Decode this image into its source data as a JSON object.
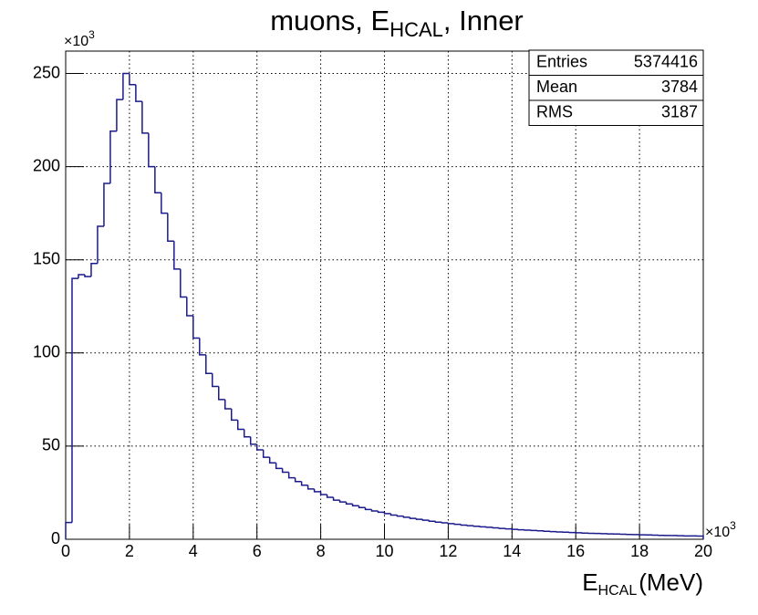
{
  "chart_data": {
    "type": "histogram",
    "title": {
      "text": "muons, E",
      "sub": "HCAL",
      "rest": ", Inner"
    },
    "x_label": {
      "text": "E",
      "sub": "HCAL",
      "rest": "(MeV)"
    },
    "x_multiplier": {
      "base": "×10",
      "exp": "3"
    },
    "y_multiplier": {
      "base": "×10",
      "exp": "3"
    },
    "color": "#1a1a8c",
    "grid": true,
    "xlim": [
      0,
      20
    ],
    "ylim": [
      0,
      262
    ],
    "xticks": [
      0,
      2,
      4,
      6,
      8,
      10,
      12,
      14,
      16,
      18,
      20
    ],
    "yticks": [
      0,
      50,
      100,
      150,
      200,
      250
    ],
    "stats": [
      {
        "label": "Entries",
        "value": 5374416
      },
      {
        "label": "Mean",
        "value": 3784
      },
      {
        "label": "RMS",
        "value": 3187
      }
    ],
    "bins": [
      0,
      0.2,
      0.4,
      0.6,
      0.8,
      1,
      1.2,
      1.4,
      1.6,
      1.8,
      2,
      2.2,
      2.4,
      2.6,
      2.8,
      3,
      3.2,
      3.4,
      3.6,
      3.8,
      4,
      4.2,
      4.4,
      4.6,
      4.8,
      5,
      5.2,
      5.4,
      5.6,
      5.8,
      6,
      6.2,
      6.4,
      6.6,
      6.8,
      7,
      7.2,
      7.4,
      7.6,
      7.8,
      8,
      8.2,
      8.4,
      8.6,
      8.8,
      9,
      9.2,
      9.4,
      9.6,
      9.8,
      10,
      10.2,
      10.4,
      10.6,
      10.8,
      11,
      11.2,
      11.4,
      11.6,
      11.8,
      12,
      12.2,
      12.4,
      12.6,
      12.8,
      13,
      13.2,
      13.4,
      13.6,
      13.8,
      14,
      14.2,
      14.4,
      14.6,
      14.8,
      15,
      15.2,
      15.4,
      15.6,
      15.8,
      16,
      16.2,
      16.4,
      16.6,
      16.8,
      17,
      17.2,
      17.4,
      17.6,
      17.8,
      18,
      18.2,
      18.4,
      18.6,
      18.8,
      19,
      19.2,
      19.4,
      19.6,
      19.8,
      20
    ],
    "values": [
      9,
      140,
      142,
      141,
      148,
      168,
      191,
      219,
      236,
      250,
      244,
      235,
      218,
      200,
      186,
      175,
      160,
      145,
      130,
      120,
      108,
      99,
      89,
      82,
      75,
      70,
      64,
      59,
      55,
      51,
      48,
      44,
      41,
      38,
      36,
      33,
      31,
      29,
      27,
      25.5,
      24,
      22.5,
      21,
      20,
      19,
      18,
      17,
      16,
      15.2,
      14.5,
      13.8,
      13,
      12.4,
      11.8,
      11.2,
      10.7,
      10.2,
      9.7,
      9.2,
      8.8,
      8.4,
      8,
      7.6,
      7.3,
      7,
      6.7,
      6.4,
      6.1,
      5.8,
      5.6,
      5.3,
      5.1,
      4.9,
      4.7,
      4.5,
      4.3,
      4.1,
      3.9,
      3.8,
      3.6,
      3.5,
      3.3,
      3.2,
      3.1,
      3,
      2.9,
      2.8,
      2.7,
      2.6,
      2.5,
      2.4,
      2.3,
      2.2,
      2.1,
      2,
      2,
      1.9,
      1.8,
      1.8,
      1.7
    ]
  }
}
